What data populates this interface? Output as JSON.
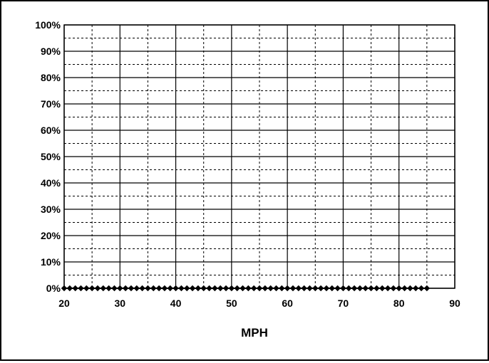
{
  "chart_data": {
    "type": "line",
    "title": "",
    "xlabel": "MPH",
    "ylabel": "",
    "xlim": [
      20,
      90
    ],
    "ylim": [
      0,
      1
    ],
    "x_ticks": [
      20,
      30,
      40,
      50,
      60,
      70,
      80,
      90
    ],
    "y_ticks": [
      0,
      0.1,
      0.2,
      0.3,
      0.4,
      0.5,
      0.6,
      0.7,
      0.8,
      0.9,
      1.0
    ],
    "x_tick_labels": [
      "20",
      "30",
      "40",
      "50",
      "60",
      "70",
      "80",
      "90"
    ],
    "y_tick_labels": [
      "0%",
      "10%",
      "20%",
      "30%",
      "40%",
      "50%",
      "60%",
      "70%",
      "80%",
      "90%",
      "100%"
    ],
    "grid": {
      "major": true,
      "minor_dashed": true
    },
    "legend": "none",
    "series": [
      {
        "marker": "diamond",
        "color": "#000000",
        "x": [
          20,
          21,
          22,
          23,
          24,
          25,
          26,
          27,
          28,
          29,
          30,
          31,
          32,
          33,
          34,
          35,
          36,
          37,
          38,
          39,
          40,
          41,
          42,
          43,
          44,
          45,
          46,
          47,
          48,
          49,
          50,
          51,
          52,
          53,
          54,
          55,
          56,
          57,
          58,
          59,
          60,
          61,
          62,
          63,
          64,
          65,
          66,
          67,
          68,
          69,
          70,
          71,
          72,
          73,
          74,
          75,
          76,
          77,
          78,
          79,
          80,
          81,
          82,
          83,
          84,
          85
        ],
        "values": [
          0,
          0,
          0,
          0,
          0,
          0,
          0,
          0,
          0,
          0,
          0,
          0,
          0,
          0,
          0,
          0,
          0,
          0,
          0,
          0,
          0,
          0,
          0,
          0,
          0,
          0,
          0,
          0,
          0,
          0,
          0,
          0,
          0,
          0,
          0,
          0,
          0,
          0,
          0,
          0,
          0,
          0,
          0,
          0,
          0,
          0,
          0,
          0,
          0,
          0,
          0,
          0,
          0,
          0,
          0,
          0,
          0,
          0,
          0,
          0,
          0,
          0,
          0,
          0,
          0,
          0
        ]
      }
    ]
  }
}
